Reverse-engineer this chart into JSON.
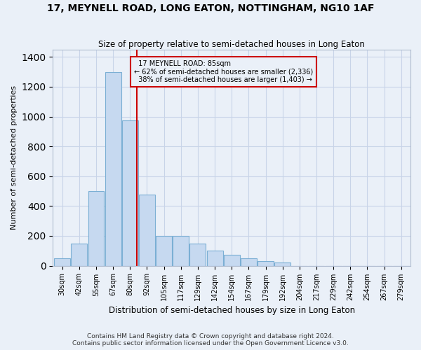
{
  "title": "17, MEYNELL ROAD, LONG EATON, NOTTINGHAM, NG10 1AF",
  "subtitle": "Size of property relative to semi-detached houses in Long Eaton",
  "xlabel": "Distribution of semi-detached houses by size in Long Eaton",
  "ylabel": "Number of semi-detached properties",
  "bin_labels": [
    "30sqm",
    "42sqm",
    "55sqm",
    "67sqm",
    "80sqm",
    "92sqm",
    "105sqm",
    "117sqm",
    "129sqm",
    "142sqm",
    "154sqm",
    "167sqm",
    "179sqm",
    "192sqm",
    "204sqm",
    "217sqm",
    "229sqm",
    "242sqm",
    "254sqm",
    "267sqm",
    "279sqm"
  ],
  "bar_heights": [
    50,
    150,
    500,
    1300,
    975,
    475,
    200,
    200,
    150,
    100,
    75,
    50,
    30,
    20,
    0,
    0,
    0,
    0,
    0,
    0,
    0
  ],
  "bar_color": "#c6d9f0",
  "bar_edge_color": "#7bafd4",
  "property_label": "17 MEYNELL ROAD: 85sqm",
  "property_bin_index": 4,
  "pct_smaller": 62,
  "n_smaller": 2336,
  "pct_larger": 38,
  "n_larger": 1403,
  "vline_color": "#cc0000",
  "ylim": [
    0,
    1450
  ],
  "yticks": [
    0,
    200,
    400,
    600,
    800,
    1000,
    1200,
    1400
  ],
  "grid_color": "#c8d4e8",
  "footer_line1": "Contains HM Land Registry data © Crown copyright and database right 2024.",
  "footer_line2": "Contains public sector information licensed under the Open Government Licence v3.0.",
  "bg_color": "#eaf0f8"
}
